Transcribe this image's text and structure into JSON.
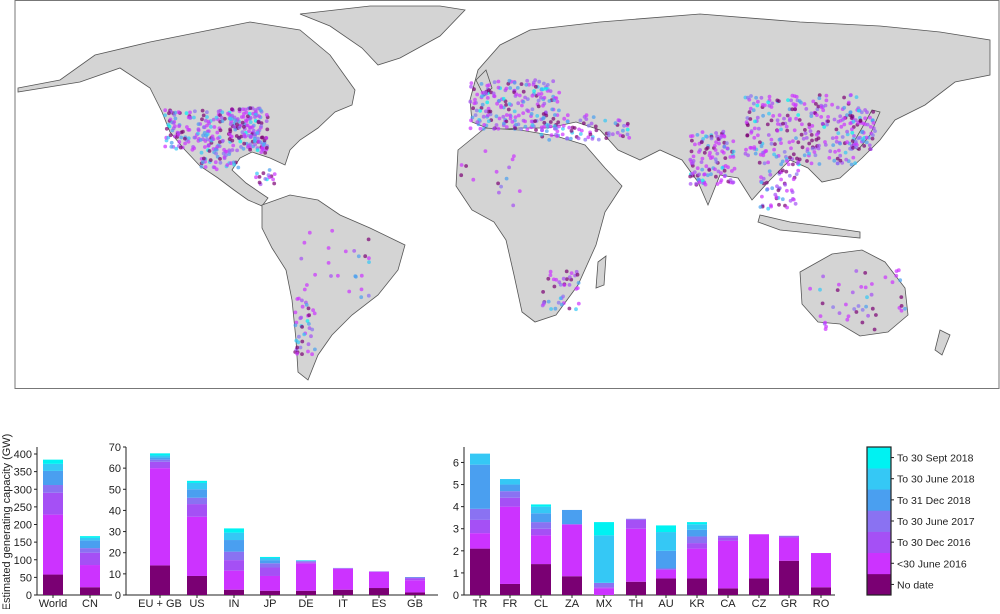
{
  "ylabel": "Estimated generating capacity (GW)",
  "legend": {
    "entries": [
      "No date",
      "<30 June 2016",
      "To 30 Dec 2016",
      "To 30 June 2017",
      "To 31 Dec 2018",
      "To 30 June 2018",
      "To 30 Sept 2018"
    ],
    "colors": [
      "#7a0073",
      "#cc33ff",
      "#a550f5",
      "#8a72f2",
      "#4a9ff0",
      "#35c8f5",
      "#00f2f2"
    ]
  },
  "map": {
    "land_color": "#d4d4d4",
    "border_color": "#555555"
  },
  "chart_data": [
    {
      "type": "bar",
      "stacked": true,
      "categories": [
        "World",
        "CN"
      ],
      "ylim": [
        0,
        400
      ],
      "yticks": [
        0,
        50,
        100,
        150,
        200,
        250,
        300,
        350,
        400
      ],
      "series": [
        {
          "name": "No date",
          "values": [
            58,
            22
          ]
        },
        {
          "name": "<30 June 2016",
          "values": [
            170,
            63
          ]
        },
        {
          "name": "To 30 Dec 2016",
          "values": [
            62,
            35
          ]
        },
        {
          "name": "To 30 June 2017",
          "values": [
            22,
            13
          ]
        },
        {
          "name": "To 31 Dec 2018",
          "values": [
            40,
            22
          ]
        },
        {
          "name": "To 30 June 2018",
          "values": [
            20,
            7
          ]
        },
        {
          "name": "To 30 Sept 2018",
          "values": [
            12,
            5
          ]
        }
      ]
    },
    {
      "type": "bar",
      "stacked": true,
      "categories": [
        "EU + GB",
        "US",
        "IN",
        "JP",
        "DE",
        "IT",
        "ES",
        "GB"
      ],
      "ylim": [
        0,
        70
      ],
      "yticks": [
        0,
        10,
        20,
        30,
        40,
        50,
        60,
        70
      ],
      "series": [
        {
          "name": "No date",
          "values": [
            14,
            9,
            2.5,
            2,
            2,
            2.5,
            3.3,
            1.2
          ]
        },
        {
          "name": "<30 June 2016",
          "values": [
            46,
            28,
            9,
            7,
            13,
            10,
            7.7,
            5.8
          ]
        },
        {
          "name": "To 30 Dec 2016",
          "values": [
            3,
            6,
            5,
            4,
            0.5,
            0.1,
            0.1,
            1
          ]
        },
        {
          "name": "To 30 June 2017",
          "values": [
            1,
            3,
            4,
            2,
            0.5,
            0.1,
            0.1,
            0.3
          ]
        },
        {
          "name": "To 31 Dec 2018",
          "values": [
            1,
            4,
            5.5,
            1.5,
            0.2,
            0.1,
            0,
            0.2
          ]
        },
        {
          "name": "To 30 June 2018",
          "values": [
            1,
            3,
            3.5,
            1,
            0.2,
            0,
            0,
            0
          ]
        },
        {
          "name": "To 30 Sept 2018",
          "values": [
            1,
            1,
            2,
            0.5,
            0.1,
            0,
            0,
            0
          ]
        }
      ]
    },
    {
      "type": "bar",
      "stacked": true,
      "categories": [
        "TR",
        "FR",
        "CL",
        "ZA",
        "MX",
        "TH",
        "AU",
        "KR",
        "CA",
        "CZ",
        "GR",
        "RO"
      ],
      "ylim": [
        0,
        6.7
      ],
      "yticks": [
        0,
        1,
        2,
        3,
        4,
        5,
        6
      ],
      "series": [
        {
          "name": "No date",
          "values": [
            2.1,
            0.5,
            1.4,
            0.85,
            0,
            0.6,
            0.75,
            0.75,
            0.3,
            0.75,
            1.55,
            0.35
          ]
        },
        {
          "name": "<30 June 2016",
          "values": [
            0.7,
            3.5,
            1.3,
            2.35,
            0.3,
            2.4,
            0.4,
            1.35,
            2.15,
            2.0,
            1.05,
            1.55
          ]
        },
        {
          "name": "To 30 Dec 2016",
          "values": [
            0.6,
            0.4,
            0.3,
            0,
            0.05,
            0.4,
            0,
            0.25,
            0.15,
            0,
            0.05,
            0
          ]
        },
        {
          "name": "To 30 June 2017",
          "values": [
            0.5,
            0.3,
            0.3,
            0,
            0.2,
            0.05,
            0.05,
            0.3,
            0.08,
            0,
            0.03,
            0
          ]
        },
        {
          "name": "To 31 Dec 2018",
          "values": [
            2.0,
            0.3,
            0.4,
            0.65,
            0,
            0,
            0.8,
            0.3,
            0,
            0,
            0,
            0
          ]
        },
        {
          "name": "To 30 June 2018",
          "values": [
            0.5,
            0.25,
            0.3,
            0,
            2.15,
            0,
            0.85,
            0.25,
            0,
            0,
            0,
            0
          ]
        },
        {
          "name": "To 30 Sept 2018",
          "values": [
            0,
            0,
            0.1,
            0,
            0.6,
            0,
            0.3,
            0.1,
            0,
            0,
            0,
            0
          ]
        }
      ]
    }
  ]
}
